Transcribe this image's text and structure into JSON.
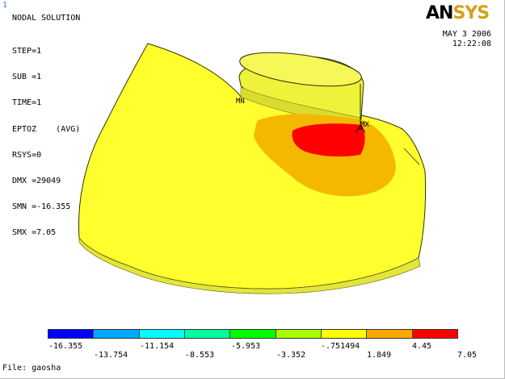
{
  "window_number": "1",
  "title": "NODAL SOLUTION",
  "info": [
    "STEP=1",
    "SUB =1",
    "TIME=1",
    "EPTOZ    (AVG)",
    "RSYS=0",
    "DMX =29049",
    "SMN =-16.355",
    "SMX =7.05"
  ],
  "logo": {
    "an": "AN",
    "sys": "SYS"
  },
  "date": "MAY  3 2006",
  "time": "12:22:08",
  "node_labels": {
    "min": "MN",
    "max": "MX"
  },
  "legend": {
    "colors": [
      "#0000ff",
      "#00a8ff",
      "#00ffff",
      "#00ffa0",
      "#00ff00",
      "#a8ff00",
      "#ffff00",
      "#ffa800",
      "#ff0000"
    ],
    "upper_labels": [
      "-16.355",
      "-11.154",
      "-5.953",
      "-.751494",
      "4.45"
    ],
    "lower_labels": [
      "-13.754",
      "-8.553",
      "-3.352",
      "1.849",
      "7.05"
    ]
  },
  "file_label": "File: gaosha"
}
